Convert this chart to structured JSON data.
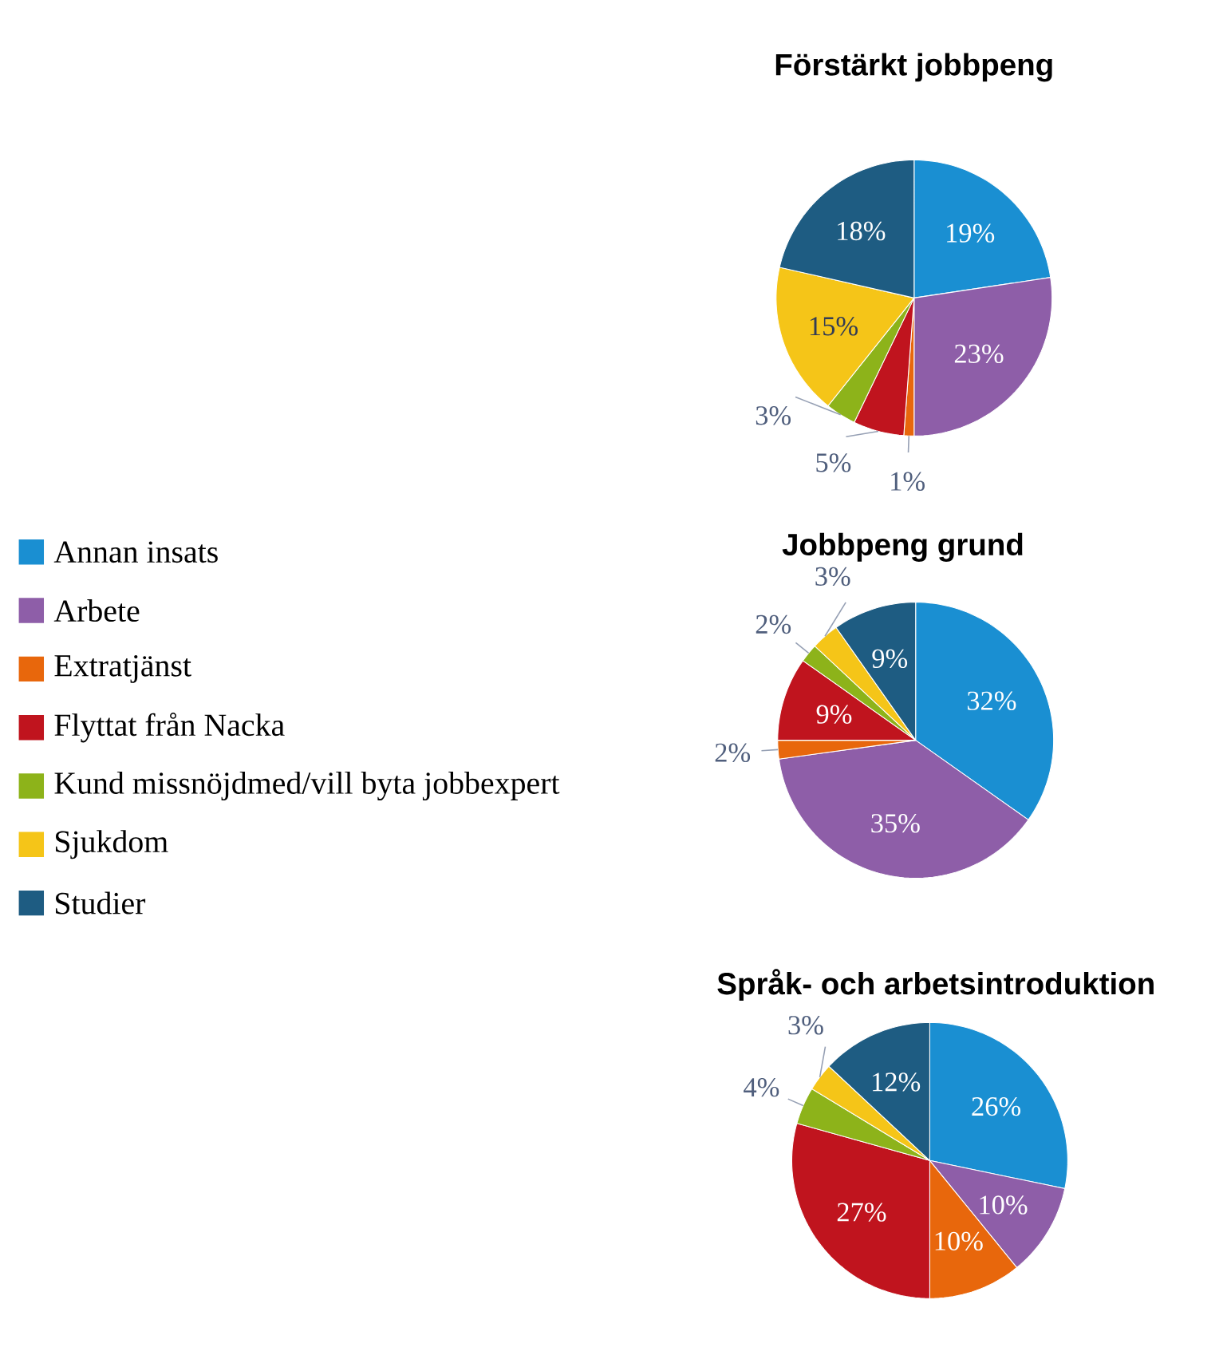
{
  "chart_data": [
    {
      "type": "pie",
      "title": "Förstärkt jobbpeng",
      "categories": [
        null,
        null,
        null,
        null,
        null,
        null,
        null
      ],
      "values": [
        19,
        23,
        1,
        5,
        3,
        15,
        18
      ],
      "value_labels": [
        "19%",
        "23%",
        "1%",
        "5%",
        "3%",
        "15%",
        "18%"
      ],
      "colors": [
        "#1a8fd2",
        "#8e5ea8",
        "#e8670c",
        "#c0141e",
        "#8db31a",
        "#f5c518",
        "#1e5c82"
      ]
    },
    {
      "type": "pie",
      "title": "Jobbpeng grund",
      "categories": [
        "Annan insats",
        "Arbete",
        "Extratjänst",
        "Flyttat från Nacka",
        "Kund missnöjdmed/vill byta jobbexpert",
        "Sjukdom",
        "Studier"
      ],
      "values": [
        32,
        35,
        2,
        9,
        2,
        3,
        9
      ],
      "value_labels": [
        "32%",
        "35%",
        "2%",
        "9%",
        "2%",
        "3%",
        "9%"
      ],
      "colors": [
        "#1a8fd2",
        "#8e5ea8",
        "#e8670c",
        "#c0141e",
        "#8db31a",
        "#f5c518",
        "#1e5c82"
      ],
      "legend": "left"
    },
    {
      "type": "pie",
      "title": "Språk- och arbetsintroduktion",
      "categories": [
        null,
        null,
        null,
        null,
        null,
        null,
        null
      ],
      "values": [
        26,
        10,
        10,
        27,
        4,
        3,
        12
      ],
      "value_labels": [
        "26%",
        "10%",
        "10%",
        "27%",
        "4%",
        "3%",
        "12%"
      ],
      "colors": [
        "#1a8fd2",
        "#8e5ea8",
        "#e8670c",
        "#c0141e",
        "#8db31a",
        "#f5c518",
        "#1e5c82"
      ]
    }
  ]
}
